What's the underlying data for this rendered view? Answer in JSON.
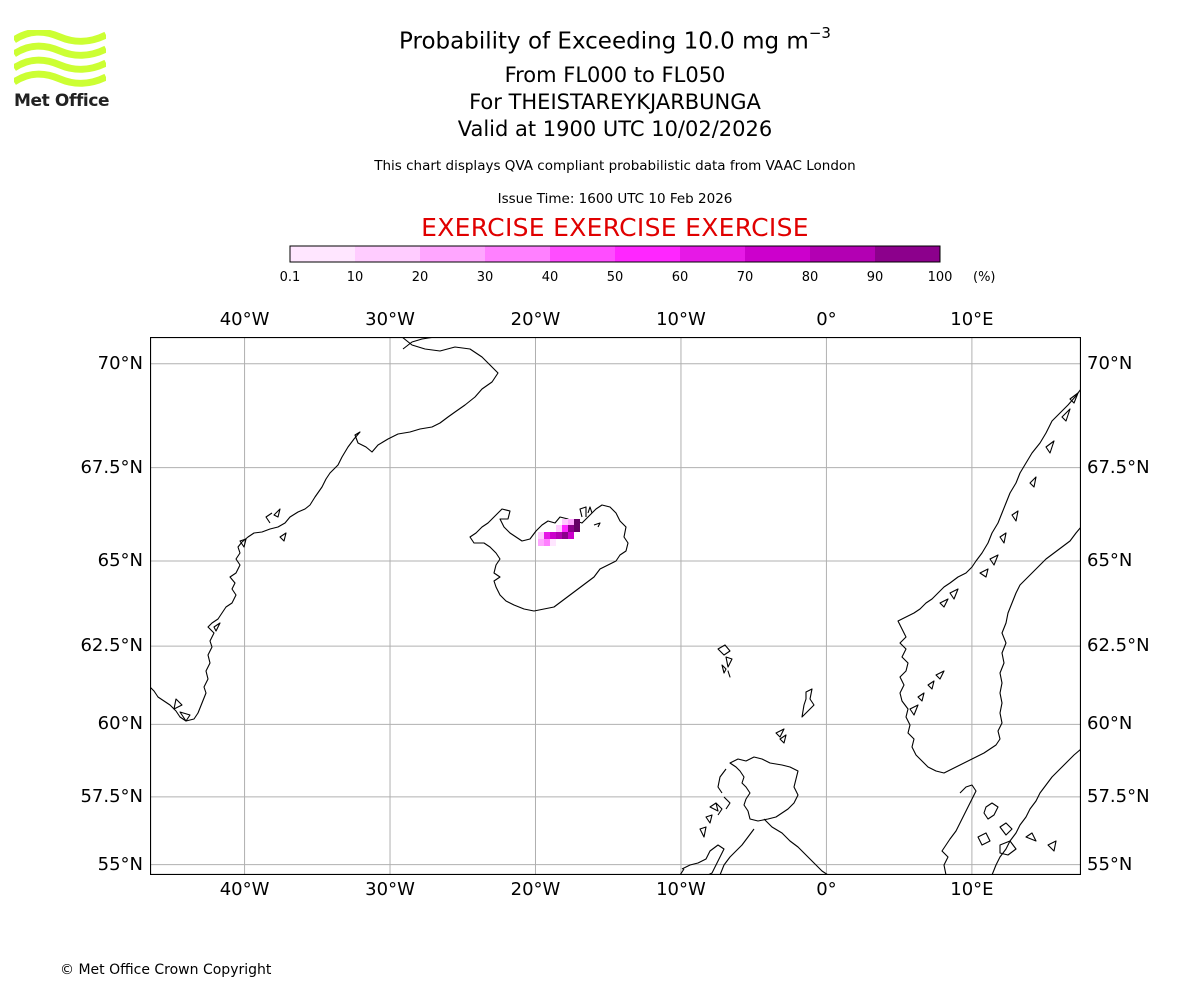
{
  "logo": {
    "text": "Met Office",
    "color": "#ccff33"
  },
  "title": {
    "main": "Probability of Exceeding 10.0 mg m",
    "main_sup": "−3",
    "levels": "From FL000 to FL050",
    "volcano": "For THEISTAREYKJARBUNGA",
    "valid": "Valid at 1900 UTC 10/02/2026"
  },
  "description": "This chart displays QVA compliant probabilistic data from VAAC London",
  "issue_time": "Issue Time: 1600 UTC 10 Feb 2026",
  "exercise_banner": "EXERCISE EXERCISE EXERCISE",
  "exercise_color": "#e00000",
  "colorbar": {
    "ticks": [
      "0.1",
      "10",
      "20",
      "30",
      "40",
      "50",
      "60",
      "70",
      "80",
      "90",
      "100"
    ],
    "unit": "(%)",
    "colors": [
      "#ffe6ff",
      "#ffccff",
      "#ffa6ff",
      "#ff80ff",
      "#ff4dff",
      "#ff26ff",
      "#e619e6",
      "#cc00cc",
      "#b300b3",
      "#8c008c",
      "#660066"
    ]
  },
  "map": {
    "projection": "plate carree",
    "lon_range": [
      -46.5,
      17.5
    ],
    "lat_range": [
      54.6,
      70.6
    ],
    "grid": true,
    "grid_color": "#b0b0b0",
    "lon_labels": [
      "40°W",
      "30°W",
      "20°W",
      "10°W",
      "0°",
      "10°E"
    ],
    "lat_labels": [
      "70°N",
      "67.5°N",
      "65°N",
      "62.5°N",
      "60°N",
      "57.5°N",
      "55°N"
    ],
    "ash_region": "north-central Iceland"
  },
  "copyright": "© Met Office Crown Copyright"
}
